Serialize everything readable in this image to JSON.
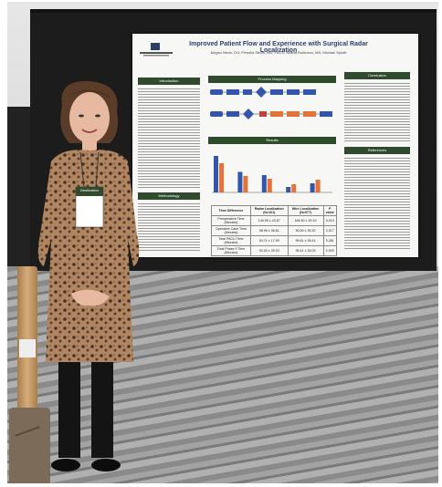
{
  "poster": {
    "title": "Improved Patient Flow and Experience with Surgical Radar Localization",
    "authors": "Megan Nevis, DO; Priscilla Strom, MD, FACS; Shana Robinson, MS; Michael Spiotti",
    "sections": {
      "introduction": "Introduction",
      "methodology": "Methodology",
      "process_mapping": "Process Mapping",
      "results": "Results",
      "conclusion": "Conclusion",
      "references": "References"
    },
    "table": {
      "headers": [
        "Time Difference",
        "Radar Localization (N=101)",
        "Wire Localization (N=977)",
        "P value"
      ],
      "rows": [
        [
          "Preoperative Time (Minutes)",
          "140.95 ± 43.87",
          "184.50 ± 49.19",
          "0.013"
        ],
        [
          "Operative Case Time (Minutes)",
          "98.96 ± 36.61",
          "90.59 ± 35.30",
          "0.217"
        ],
        [
          "Total PACU Time (Minutes)",
          "54.71 ± 17.99",
          "99.61 ± 36.41",
          "0.281"
        ],
        [
          "Total Phase II Time (Minutes)",
          "92.53 ± 39.03",
          "95.41 ± 39.03",
          "0.900"
        ]
      ]
    },
    "chart_data": {
      "type": "bar",
      "series": [
        {
          "values": [
            80,
            45,
            38,
            12,
            20
          ]
        },
        {
          "values": [
            64,
            36,
            30,
            18,
            28
          ]
        }
      ],
      "colors": [
        "#3355aa",
        "#e4733a"
      ]
    }
  },
  "badge": {
    "event": "Destination"
  }
}
